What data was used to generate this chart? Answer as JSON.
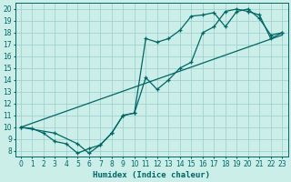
{
  "xlabel": "Humidex (Indice chaleur)",
  "ylabel": "",
  "bg_color": "#cceee8",
  "line_color": "#006666",
  "grid_color": "#99cccc",
  "xlim": [
    -0.5,
    23.5
  ],
  "ylim": [
    7.5,
    20.5
  ],
  "xticks": [
    0,
    1,
    2,
    3,
    4,
    5,
    6,
    7,
    8,
    9,
    10,
    11,
    12,
    13,
    14,
    15,
    16,
    17,
    18,
    19,
    20,
    21,
    22,
    23
  ],
  "yticks": [
    8,
    9,
    10,
    11,
    12,
    13,
    14,
    15,
    16,
    17,
    18,
    19,
    20
  ],
  "line1_x": [
    0,
    1,
    2,
    3,
    4,
    5,
    6,
    7,
    8,
    9,
    10,
    11,
    12,
    13,
    14,
    15,
    16,
    17,
    18,
    19,
    20,
    21,
    22,
    23
  ],
  "line1_y": [
    10,
    9.9,
    9.5,
    8.8,
    8.6,
    7.8,
    8.2,
    8.5,
    9.5,
    11.0,
    11.2,
    17.5,
    17.2,
    17.5,
    18.2,
    19.4,
    19.5,
    19.7,
    18.5,
    19.8,
    20.0,
    19.2,
    17.8,
    18.0
  ],
  "line2_x": [
    0,
    3,
    5,
    6,
    7,
    8,
    9,
    10,
    11,
    12,
    13,
    14,
    15,
    16,
    17,
    18,
    19,
    20,
    21,
    22,
    23
  ],
  "line2_y": [
    10,
    9.5,
    8.6,
    7.8,
    8.5,
    9.5,
    11.0,
    11.2,
    14.2,
    13.2,
    14.0,
    15.0,
    15.5,
    18.0,
    18.5,
    19.8,
    20.0,
    19.8,
    19.5,
    17.5,
    18.0
  ],
  "line3_x": [
    0,
    23
  ],
  "line3_y": [
    10,
    17.8
  ],
  "xlabel_fontsize": 6.5,
  "tick_fontsize": 5.5
}
